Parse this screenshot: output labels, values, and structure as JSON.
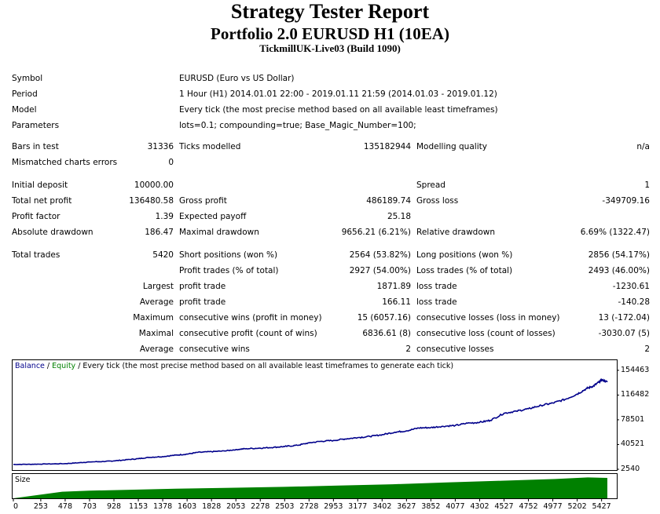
{
  "header": {
    "title": "Strategy Tester Report",
    "subtitle": "Portfolio 2.0 EURUSD H1 (10EA)",
    "server": "TickmillUK-Live03 (Build 1090)"
  },
  "info": {
    "symbol_label": "Symbol",
    "symbol_value": "EURUSD (Euro vs US Dollar)",
    "period_label": "Period",
    "period_value": "1 Hour (H1) 2014.01.01 22:00 - 2019.01.11 21:59 (2014.01.03 - 2019.01.12)",
    "model_label": "Model",
    "model_value": "Every tick (the most precise method based on all available least timeframes)",
    "parameters_label": "Parameters",
    "parameters_value": "lots=0.1; compounding=true; Base_Magic_Number=100;"
  },
  "bars": {
    "bars_label": "Bars in test",
    "bars_value": "31336",
    "ticks_label": "Ticks modelled",
    "ticks_value": "135182944",
    "quality_label": "Modelling quality",
    "quality_value": "n/a",
    "mismatch_label": "Mismatched charts errors",
    "mismatch_value": "0"
  },
  "results": {
    "deposit_label": "Initial deposit",
    "deposit_value": "10000.00",
    "spread_label": "Spread",
    "spread_value": "1",
    "net_label": "Total net profit",
    "net_value": "136480.58",
    "gross_profit_label": "Gross profit",
    "gross_profit_value": "486189.74",
    "gross_loss_label": "Gross loss",
    "gross_loss_value": "-349709.16",
    "pf_label": "Profit factor",
    "pf_value": "1.39",
    "payoff_label": "Expected payoff",
    "payoff_value": "25.18",
    "abs_dd_label": "Absolute drawdown",
    "abs_dd_value": "186.47",
    "max_dd_label": "Maximal drawdown",
    "max_dd_value": "9656.21 (6.21%)",
    "rel_dd_label": "Relative drawdown",
    "rel_dd_value": "6.69% (1322.47)"
  },
  "trades": {
    "total_label": "Total trades",
    "total_value": "5420",
    "short_label": "Short positions (won %)",
    "short_value": "2564 (53.82%)",
    "long_label": "Long positions (won %)",
    "long_value": "2856 (54.17%)",
    "profit_trades_label": "Profit trades (% of total)",
    "profit_trades_value": "2927 (54.00%)",
    "loss_trades_label": "Loss trades (% of total)",
    "loss_trades_value": "2493 (46.00%)",
    "largest_label": "Largest",
    "largest_profit_label": "profit trade",
    "largest_profit_value": "1871.89",
    "largest_loss_label": "loss trade",
    "largest_loss_value": "-1230.61",
    "average_label": "Average",
    "average_profit_label": "profit trade",
    "average_profit_value": "166.11",
    "average_loss_label": "loss trade",
    "average_loss_value": "-140.28",
    "maximum_label": "Maximum",
    "max_wins_label": "consecutive wins (profit in money)",
    "max_wins_value": "15 (6057.16)",
    "max_losses_label": "consecutive losses (loss in money)",
    "max_losses_value": "13 (-172.04)",
    "maximal_label": "Maximal",
    "maximal_profit_label": "consecutive profit (count of wins)",
    "maximal_profit_value": "6836.61 (8)",
    "maximal_loss_label": "consecutive loss (count of losses)",
    "maximal_loss_value": "-3030.07 (5)",
    "avg2_label": "Average",
    "avg_wins_label": "consecutive wins",
    "avg_wins_value": "2",
    "avg_losses_label": "consecutive losses",
    "avg_losses_value": "2"
  },
  "chart_data": {
    "type": "line",
    "legend": {
      "balance": "Balance",
      "sep1": " / ",
      "equity": "Equity",
      "rest": " / Every tick (the most precise method based on all available least timeframes to generate each tick)"
    },
    "size_label": "Size",
    "y_ticks": [
      "154463",
      "116482",
      "78501",
      "40521",
      "2540"
    ],
    "y_tick_values": [
      154463,
      116482,
      78501,
      40521,
      2540
    ],
    "x_ticks": [
      "0",
      "253",
      "478",
      "703",
      "928",
      "1153",
      "1378",
      "1603",
      "1828",
      "2053",
      "2278",
      "2503",
      "2728",
      "2953",
      "3177",
      "3402",
      "3627",
      "3852",
      "4077",
      "4302",
      "4527",
      "4752",
      "4977",
      "5202",
      "5427"
    ],
    "x_tick_values": [
      0,
      253,
      478,
      703,
      928,
      1153,
      1378,
      1603,
      1828,
      2053,
      2278,
      2503,
      2728,
      2953,
      3177,
      3402,
      3627,
      3852,
      4077,
      4302,
      4527,
      4752,
      4977,
      5202,
      5427
    ],
    "xlim": [
      0,
      5560
    ],
    "ylim": [
      2540,
      170000
    ],
    "series": [
      {
        "name": "Balance",
        "color": "#00008b",
        "x": [
          0,
          150,
          300,
          478,
          600,
          703,
          850,
          928,
          1050,
          1153,
          1260,
          1378,
          1500,
          1603,
          1700,
          1828,
          1950,
          2053,
          2150,
          2278,
          2400,
          2503,
          2620,
          2728,
          2840,
          2953,
          3060,
          3177,
          3290,
          3402,
          3520,
          3627,
          3740,
          3852,
          3960,
          4077,
          4190,
          4302,
          4400,
          4527,
          4640,
          4752,
          4870,
          4977,
          5090,
          5202,
          5290,
          5350,
          5400,
          5427,
          5480
        ],
        "y": [
          10000,
          10200,
          10600,
          11200,
          12500,
          13800,
          14600,
          15400,
          17200,
          18800,
          20900,
          22000,
          24300,
          25800,
          28400,
          29600,
          30600,
          32800,
          34200,
          35000,
          36200,
          37500,
          39300,
          43100,
          45500,
          46800,
          49100,
          51200,
          52900,
          55700,
          59400,
          61500,
          65900,
          66600,
          68500,
          69800,
          73200,
          74600,
          77600,
          88500,
          91800,
          95400,
          100600,
          104200,
          109900,
          118000,
          126600,
          130200,
          136000,
          140000,
          136480
        ]
      }
    ],
    "size_series": {
      "name": "Size",
      "color": "#008000",
      "x": [
        0,
        450,
        700,
        1000,
        1500,
        2000,
        2500,
        3000,
        3500,
        4000,
        4500,
        5000,
        5300,
        5480
      ],
      "v": [
        0,
        0.3,
        0.35,
        0.38,
        0.44,
        0.48,
        0.52,
        0.58,
        0.64,
        0.72,
        0.8,
        0.88,
        0.95,
        0.93
      ]
    }
  }
}
